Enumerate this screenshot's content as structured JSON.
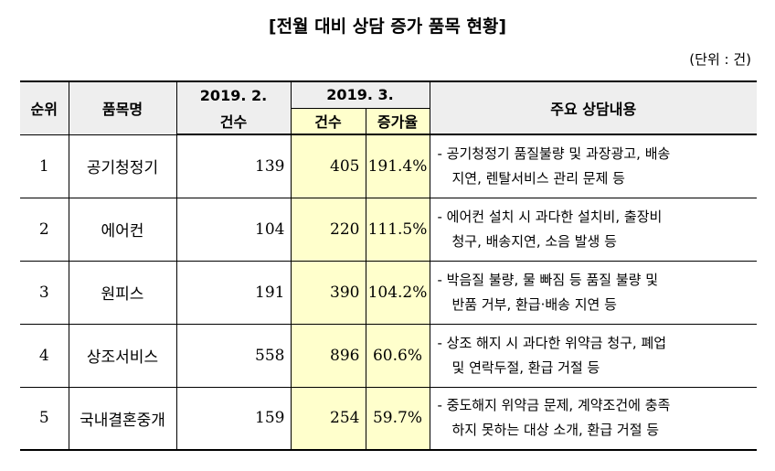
{
  "title": "[전월 대비 상담 증가 품목 현황]",
  "unit": "(단위 : 건)",
  "table": {
    "header": {
      "rank": "순위",
      "item": "품목명",
      "feb_top": "2019. 2.",
      "feb_bottom": "건수",
      "mar_top": "2019. 3.",
      "mar_count": "건수",
      "mar_rate": "증가율",
      "desc": "주요 상담내용"
    },
    "rows": [
      {
        "rank": "1",
        "item": "공기청정기",
        "feb": "139",
        "mar": "405",
        "rate": "191.4%",
        "desc": [
          "- 공기청정기 품질불량 및 과장광고, 배송",
          "지연, 렌탈서비스 관리 문제 등"
        ]
      },
      {
        "rank": "2",
        "item": "에어컨",
        "feb": "104",
        "mar": "220",
        "rate": "111.5%",
        "desc": [
          "- 에어컨 설치 시 과다한 설치비, 출장비",
          "청구, 배송지연, 소음 발생 등"
        ]
      },
      {
        "rank": "3",
        "item": "원피스",
        "feb": "191",
        "mar": "390",
        "rate": "104.2%",
        "desc": [
          "- 박음질 불량, 물 빠짐 등 품질 불량 및",
          "반품 거부, 환급·배송 지연 등"
        ]
      },
      {
        "rank": "4",
        "item": "상조서비스",
        "feb": "558",
        "mar": "896",
        "rate": "60.6%",
        "desc": [
          "- 상조 해지 시 과다한 위약금 청구, 폐업",
          "및 연락두절, 환급 거절 등"
        ]
      },
      {
        "rank": "5",
        "item": "국내결혼중개",
        "feb": "159",
        "mar": "254",
        "rate": "59.7%",
        "desc": [
          "- 중도해지 위약금 문제, 계약조건에 충족",
          "하지 못하는 대상 소개, 환급 거절 등"
        ]
      }
    ]
  }
}
